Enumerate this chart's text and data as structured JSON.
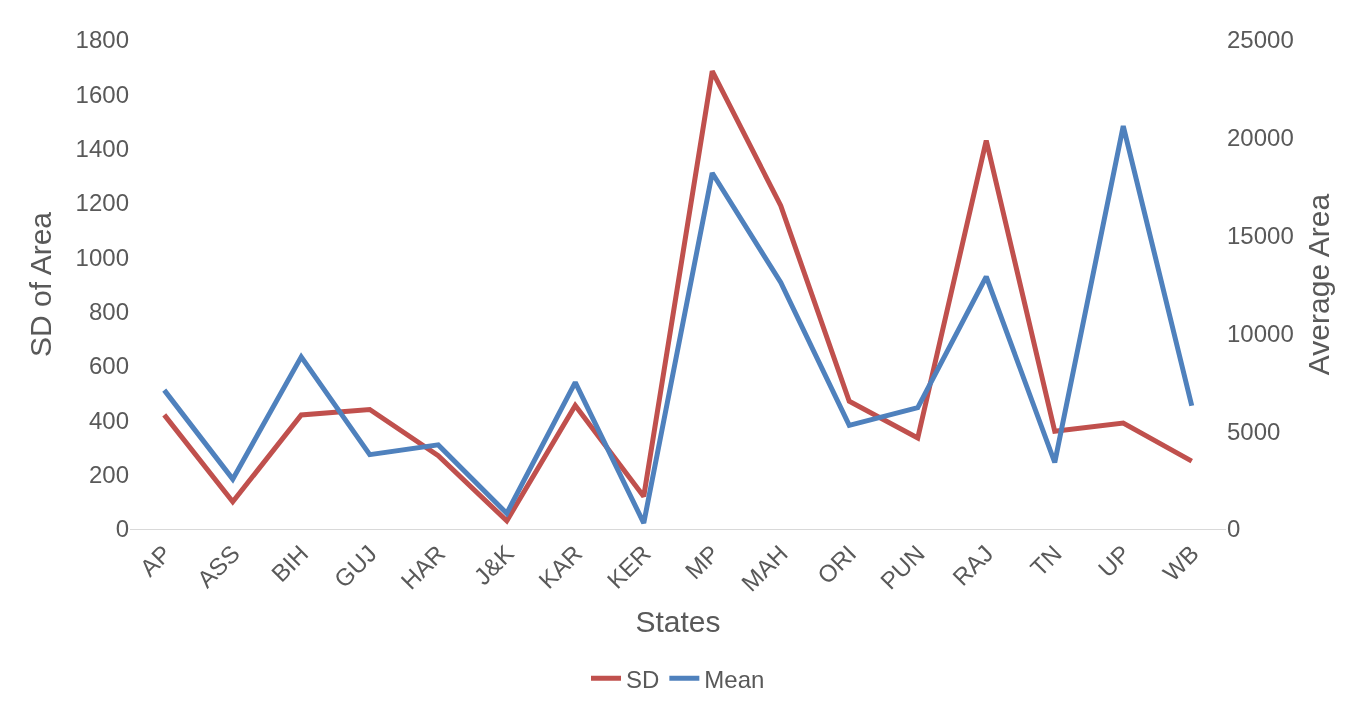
{
  "chart_data": {
    "type": "line",
    "xlabel": "States",
    "ylabel": "SD of Area",
    "y2label": "Average Area",
    "categories": [
      "AP",
      "ASS",
      "BIH",
      "GUJ",
      "HAR",
      "J&K",
      "KAR",
      "KER",
      "MP",
      "MAH",
      "ORI",
      "PUN",
      "RAJ",
      "TN",
      "UP",
      "WB"
    ],
    "series": [
      {
        "name": "SD",
        "color": "#c0504d",
        "values": [
          420,
          100,
          420,
          440,
          270,
          30,
          455,
          120,
          1685,
          1190,
          470,
          335,
          1430,
          360,
          390,
          250
        ]
      },
      {
        "name": "Mean",
        "color": "#4f81bd",
        "axis": "y2",
        "values": [
          7100,
          2550,
          8800,
          3800,
          4300,
          800,
          7500,
          300,
          18200,
          12600,
          5300,
          6200,
          12900,
          3400,
          20600,
          6300
        ]
      }
    ],
    "ylim": [
      0,
      1800
    ],
    "yticks": [
      0,
      200,
      400,
      600,
      800,
      1000,
      1200,
      1400,
      1600,
      1800
    ],
    "y2lim": [
      0,
      25000
    ],
    "y2ticks": [
      0,
      5000,
      10000,
      15000,
      20000,
      25000
    ],
    "legend": "bottom",
    "marker": "none",
    "line_style": "solid"
  }
}
